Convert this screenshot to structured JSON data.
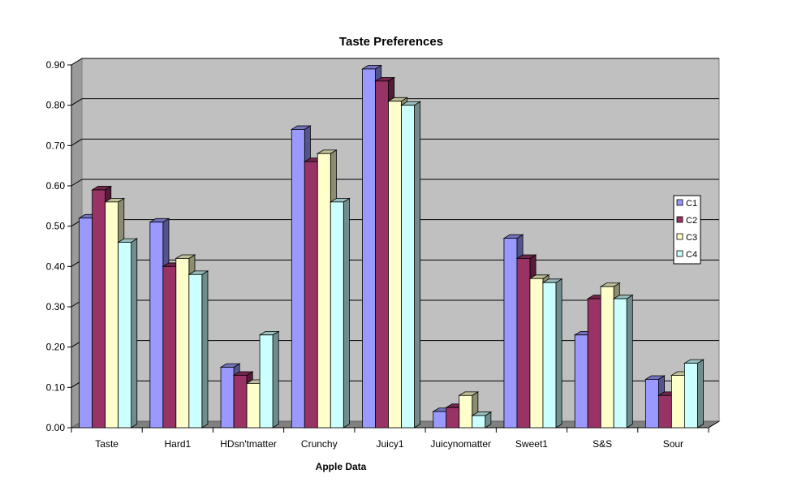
{
  "chart_data": {
    "type": "bar",
    "title": "Taste Preferences",
    "xlabel": "Apple Data",
    "ylabel": "",
    "ylim": [
      0,
      0.9
    ],
    "y_ticks": [
      "0.00",
      "0.10",
      "0.20",
      "0.30",
      "0.40",
      "0.50",
      "0.60",
      "0.70",
      "0.80",
      "0.90"
    ],
    "grid": true,
    "legend_position": "right",
    "categories": [
      "Taste",
      "Hard1",
      "HDsn'tmatter",
      "Crunchy",
      "Juicy1",
      "Juicynomatter",
      "Sweet1",
      "S&S",
      "Sour"
    ],
    "series": [
      {
        "name": "C1",
        "color": "#9999ff",
        "values": [
          0.52,
          0.51,
          0.15,
          0.74,
          0.89,
          0.04,
          0.47,
          0.23,
          0.12
        ]
      },
      {
        "name": "C2",
        "color": "#993366",
        "values": [
          0.59,
          0.4,
          0.13,
          0.66,
          0.86,
          0.05,
          0.42,
          0.32,
          0.08
        ]
      },
      {
        "name": "C3",
        "color": "#ffffcc",
        "values": [
          0.56,
          0.42,
          0.11,
          0.68,
          0.81,
          0.08,
          0.37,
          0.35,
          0.13
        ]
      },
      {
        "name": "C4",
        "color": "#ccffff",
        "values": [
          0.46,
          0.38,
          0.23,
          0.56,
          0.8,
          0.03,
          0.36,
          0.32,
          0.16
        ]
      }
    ],
    "colors": {
      "plot_wall": "#c0c0c0",
      "plot_wall_side": "#9a9a9a",
      "floor": "#808080"
    }
  }
}
